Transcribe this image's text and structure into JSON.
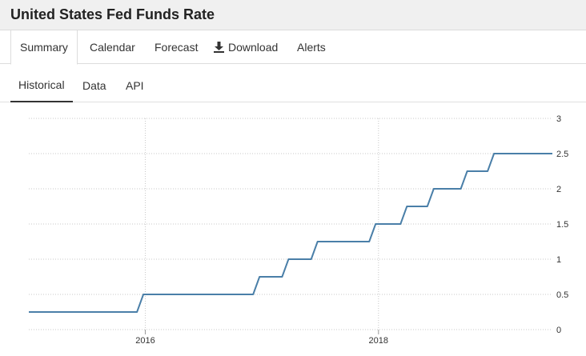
{
  "page": {
    "title": "United States Fed Funds Rate"
  },
  "main_tabs": [
    {
      "label": "Summary",
      "active": true
    },
    {
      "label": "Calendar"
    },
    {
      "label": "Forecast"
    },
    {
      "label": "Download",
      "icon": "download-icon"
    },
    {
      "label": "Alerts"
    }
  ],
  "sub_tabs": [
    {
      "label": "Historical",
      "active": true
    },
    {
      "label": "Data"
    },
    {
      "label": "API"
    }
  ],
  "colors": {
    "line": "#4a7fa8",
    "grid": "#c8c8c8",
    "active_tab_border": "#333333"
  },
  "chart_data": {
    "type": "line",
    "step": true,
    "title": "",
    "xlabel": "",
    "ylabel": "",
    "xlim": [
      "2015-01-01",
      "2019-06-30"
    ],
    "ylim": [
      0,
      3
    ],
    "grid": true,
    "y_axis_position": "right",
    "x_ticks": [
      {
        "value": "2016-01-01",
        "label": "2016"
      },
      {
        "value": "2018-01-01",
        "label": "2018"
      }
    ],
    "y_ticks": [
      {
        "value": 0,
        "label": "0"
      },
      {
        "value": 0.5,
        "label": "0.5"
      },
      {
        "value": 1,
        "label": "1"
      },
      {
        "value": 1.5,
        "label": "1.5"
      },
      {
        "value": 2,
        "label": "2"
      },
      {
        "value": 2.5,
        "label": "2.5"
      },
      {
        "value": 3,
        "label": "3"
      }
    ],
    "series": [
      {
        "values": [
          {
            "x": "2015-01-01",
            "y": 0.25
          },
          {
            "x": "2015-12-16",
            "y": 0.5
          },
          {
            "x": "2016-12-14",
            "y": 0.75
          },
          {
            "x": "2017-03-15",
            "y": 1.0
          },
          {
            "x": "2017-06-14",
            "y": 1.25
          },
          {
            "x": "2017-12-13",
            "y": 1.5
          },
          {
            "x": "2018-03-21",
            "y": 1.75
          },
          {
            "x": "2018-06-13",
            "y": 2.0
          },
          {
            "x": "2018-09-26",
            "y": 2.25
          },
          {
            "x": "2018-12-19",
            "y": 2.5
          },
          {
            "x": "2019-06-30",
            "y": 2.5
          }
        ]
      }
    ]
  }
}
